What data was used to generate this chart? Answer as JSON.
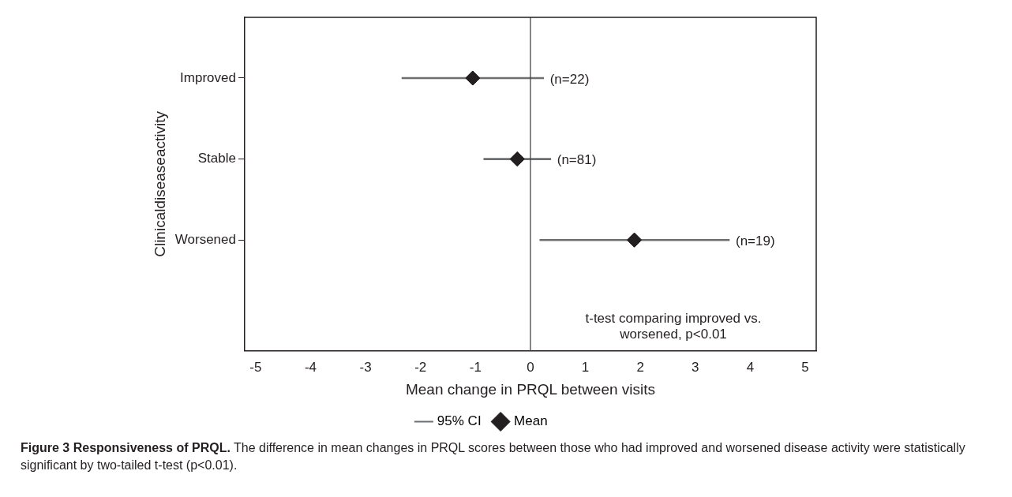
{
  "chart_data": {
    "type": "scatter",
    "orientation": "horizontal",
    "title": "Figure 3 Responsiveness of PRQL.",
    "subtitle": "The difference in mean changes in PRQL scores between those who had improved and worsened disease activity were statistically significant by two-tailed t-test (p<0.01).",
    "categories": [
      "Improved",
      "Stable",
      "Worsened"
    ],
    "xlabel": "Mean change in PRQL between visits",
    "ylabel": "Clinicaldiseaseactivity",
    "xlim": [
      -5.2,
      5.2
    ],
    "xticks": [
      -5,
      -4,
      -3,
      -2,
      -1,
      0,
      1,
      2,
      3,
      4,
      5
    ],
    "series": [
      {
        "name": "95% CI",
        "type": "bar",
        "color": "#6d6e70",
        "base": [
          -2.34,
          -0.85,
          0.17
        ],
        "values": [
          2.58,
          1.22,
          3.45
        ]
      },
      {
        "name": "Mean",
        "marker": "diamond",
        "color": "#231f20",
        "values": [
          -1.05,
          -0.24,
          1.89
        ]
      }
    ],
    "ref_lines": [
      {
        "axis": "x",
        "value": 0,
        "color": "#444444"
      }
    ],
    "annotations": [
      {
        "text": "(n=22)",
        "x": 0.24,
        "y": "Improved"
      },
      {
        "text": "(n=81)",
        "x": 0.37,
        "y": "Stable"
      },
      {
        "text": "(n=19)",
        "x": 3.62,
        "y": "Worsened"
      },
      "t-test comparing improved vs. worsened, p<0.01"
    ],
    "grid": false,
    "legend": "bottom"
  }
}
